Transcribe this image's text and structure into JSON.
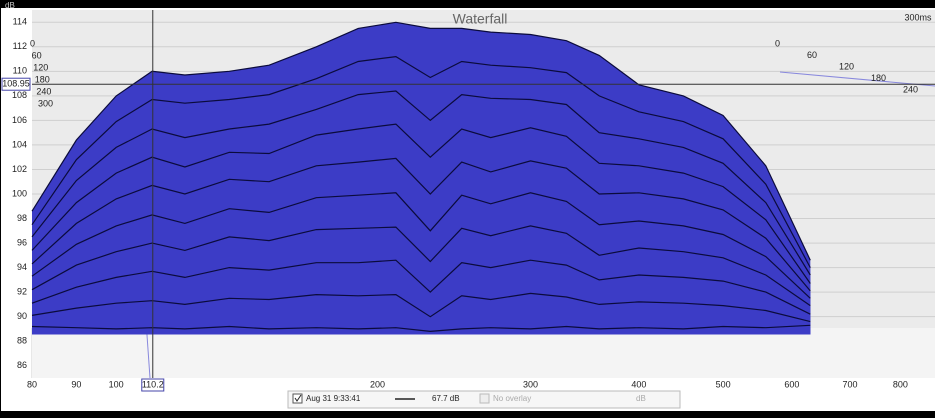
{
  "chart_data": {
    "type": "waterfall",
    "title": "Waterfall",
    "ylabel": "dB",
    "x_scale": "log",
    "xlim": [
      80,
      877
    ],
    "xticks": [
      80,
      90,
      100,
      200,
      300,
      400,
      500,
      600,
      700,
      800
    ],
    "ylim": [
      85,
      115
    ],
    "yticks": [
      86,
      88,
      90,
      92,
      94,
      96,
      98,
      100,
      102,
      104,
      106,
      108,
      110,
      112,
      114
    ],
    "zticks": [
      0,
      60,
      120,
      180,
      240,
      300
    ],
    "z_axis_end_label": "300ms",
    "grid": true,
    "color": "#3c3cc6",
    "line_color": "#0b0b3c",
    "cursor": {
      "x": 110.2,
      "y": 108.95
    },
    "x": [
      80,
      90,
      100,
      110,
      120,
      135,
      150,
      170,
      190,
      210,
      230,
      250,
      270,
      300,
      330,
      360,
      400,
      450,
      500,
      560,
      630
    ],
    "slices": [
      {
        "values": [
          98.6,
          104.4,
          108,
          110,
          109.7,
          110,
          110.5,
          112,
          113.5,
          114,
          113.5,
          113.5,
          113.2,
          113,
          112.5,
          111.3,
          108.9,
          108,
          106.4,
          102.3,
          94.6
        ]
      },
      {
        "values": [
          97.5,
          102.8,
          105.9,
          107.7,
          107.4,
          107.7,
          108.1,
          109.4,
          110.8,
          111.2,
          109.5,
          110.8,
          110.5,
          110.3,
          109.9,
          108,
          106.7,
          105.9,
          104.5,
          100.8,
          94
        ]
      },
      {
        "values": [
          96.5,
          101.1,
          103.8,
          105.3,
          104.6,
          105.3,
          105.7,
          106.9,
          108.1,
          108.4,
          106,
          108.1,
          107.8,
          107.7,
          107.3,
          105,
          104.5,
          103.8,
          102.5,
          99.3,
          93.4
        ]
      },
      {
        "values": [
          95.4,
          99.3,
          101.7,
          103,
          102.2,
          103.4,
          103.3,
          104.8,
          105.3,
          105.7,
          103,
          105.3,
          104.6,
          105.4,
          104.7,
          102.5,
          102.3,
          101.7,
          100.6,
          97.9,
          92.7
        ]
      },
      {
        "values": [
          94.3,
          97.6,
          99.6,
          100.7,
          100,
          101.2,
          101,
          102.3,
          102.6,
          102.9,
          100,
          102.6,
          101.8,
          102.7,
          102.1,
          100,
          100.1,
          99.6,
          98.7,
          96.4,
          92.1
        ]
      },
      {
        "values": [
          93.3,
          95.9,
          97.4,
          98.3,
          97.6,
          98.8,
          98.5,
          99.7,
          99.9,
          100.1,
          97,
          99.9,
          99.2,
          100.1,
          99.4,
          97.5,
          97.8,
          97.4,
          96.7,
          94.9,
          91.5
        ]
      },
      {
        "values": [
          92.2,
          94.2,
          95.3,
          96,
          95.4,
          96.5,
          96.2,
          97.1,
          97.2,
          97.3,
          94.5,
          97.2,
          96.6,
          97.4,
          96.8,
          95,
          95.6,
          95.3,
          94.8,
          93.4,
          90.9
        ]
      },
      {
        "values": [
          91.1,
          92.4,
          93.2,
          93.7,
          93.2,
          94,
          93.8,
          94.4,
          94.4,
          94.6,
          92,
          94.4,
          94,
          94.6,
          94.2,
          93,
          93.4,
          93.2,
          92.9,
          92,
          90.2
        ]
      },
      {
        "values": [
          90.1,
          90.7,
          91.1,
          91.3,
          91,
          91.5,
          91.4,
          91.8,
          91.7,
          91.8,
          90,
          91.7,
          91.4,
          91.9,
          91.6,
          91,
          91.2,
          91.1,
          90.9,
          90.5,
          89.6
        ]
      },
      {
        "values": [
          89.2,
          89.1,
          89,
          89.1,
          89,
          89.2,
          89,
          89.1,
          89,
          89.1,
          88.8,
          89,
          89.1,
          89,
          89.2,
          89,
          89.1,
          89,
          89.2,
          89.1,
          89.3
        ]
      }
    ],
    "legend": {
      "entries": [
        {
          "name": "Aug 31 9:33:41",
          "level": "67.7 dB"
        },
        {
          "name": "No overlay",
          "unit": "dB"
        }
      ]
    }
  }
}
